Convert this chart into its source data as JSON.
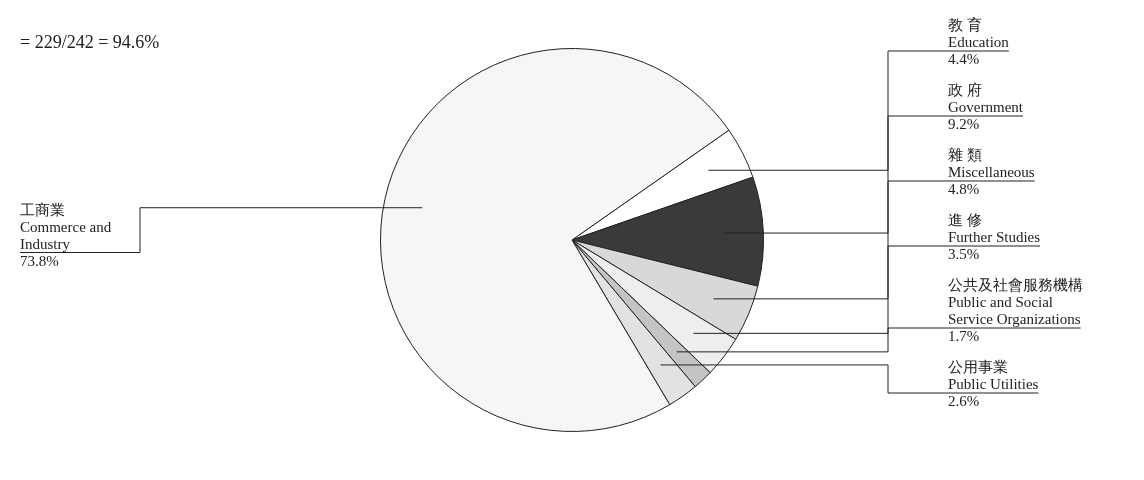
{
  "chart_data": {
    "type": "pie",
    "categories": [
      "教 育\nEducation",
      "政 府\nGovernment",
      "雜 類\nMiscellaneous",
      "進 修\nFurther Studies",
      "公共及社會服務機構\nPublic and Social\nService Organizations",
      "公用事業\nPublic Utilities",
      "工商業\nCommerce and\nIndustry"
    ],
    "values": [
      4.4,
      9.2,
      4.8,
      3.5,
      1.7,
      2.6,
      73.8
    ],
    "colors": [
      "#ffffff",
      "#3a3a3a",
      "#d8d8d8",
      "#eeeeee",
      "#c4c4c4",
      "#e2e2e2",
      "#f6f6f6"
    ],
    "value_labels": [
      "4.4%",
      "9.2%",
      "4.8%",
      "3.5%",
      "1.7%",
      "2.6%",
      "73.8%"
    ],
    "annotations": [
      "= 229/242 = 94.6%"
    ],
    "legend": false
  }
}
